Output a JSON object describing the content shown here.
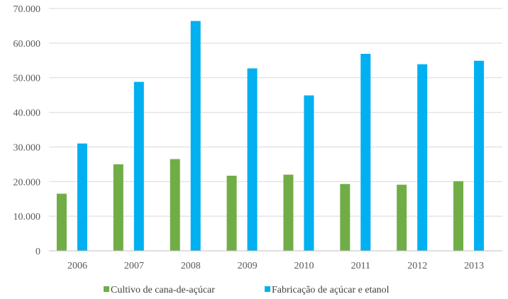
{
  "chart_data": {
    "type": "bar",
    "title": "",
    "xlabel": "",
    "ylabel": "",
    "categories": [
      "2006",
      "2007",
      "2008",
      "2009",
      "2010",
      "2011",
      "2012",
      "2013"
    ],
    "series": [
      {
        "name": "Cultivo de cana-de-açúcar",
        "color": "#70AD47",
        "values": [
          16500,
          25000,
          26500,
          21700,
          22000,
          19300,
          19100,
          20100
        ]
      },
      {
        "name": "Fabricação de açúcar e etanol",
        "color": "#00B0F0",
        "values": [
          31000,
          48800,
          66400,
          52700,
          44900,
          56900,
          53900,
          54900
        ]
      }
    ],
    "ylim": [
      0,
      70000
    ],
    "yticks": [
      0,
      10000,
      20000,
      30000,
      40000,
      50000,
      60000,
      70000
    ],
    "ytick_labels": [
      "0",
      "10.000",
      "20.000",
      "30.000",
      "40.000",
      "50.000",
      "60.000",
      "70.000"
    ],
    "grid": true,
    "legend_position": "bottom"
  }
}
